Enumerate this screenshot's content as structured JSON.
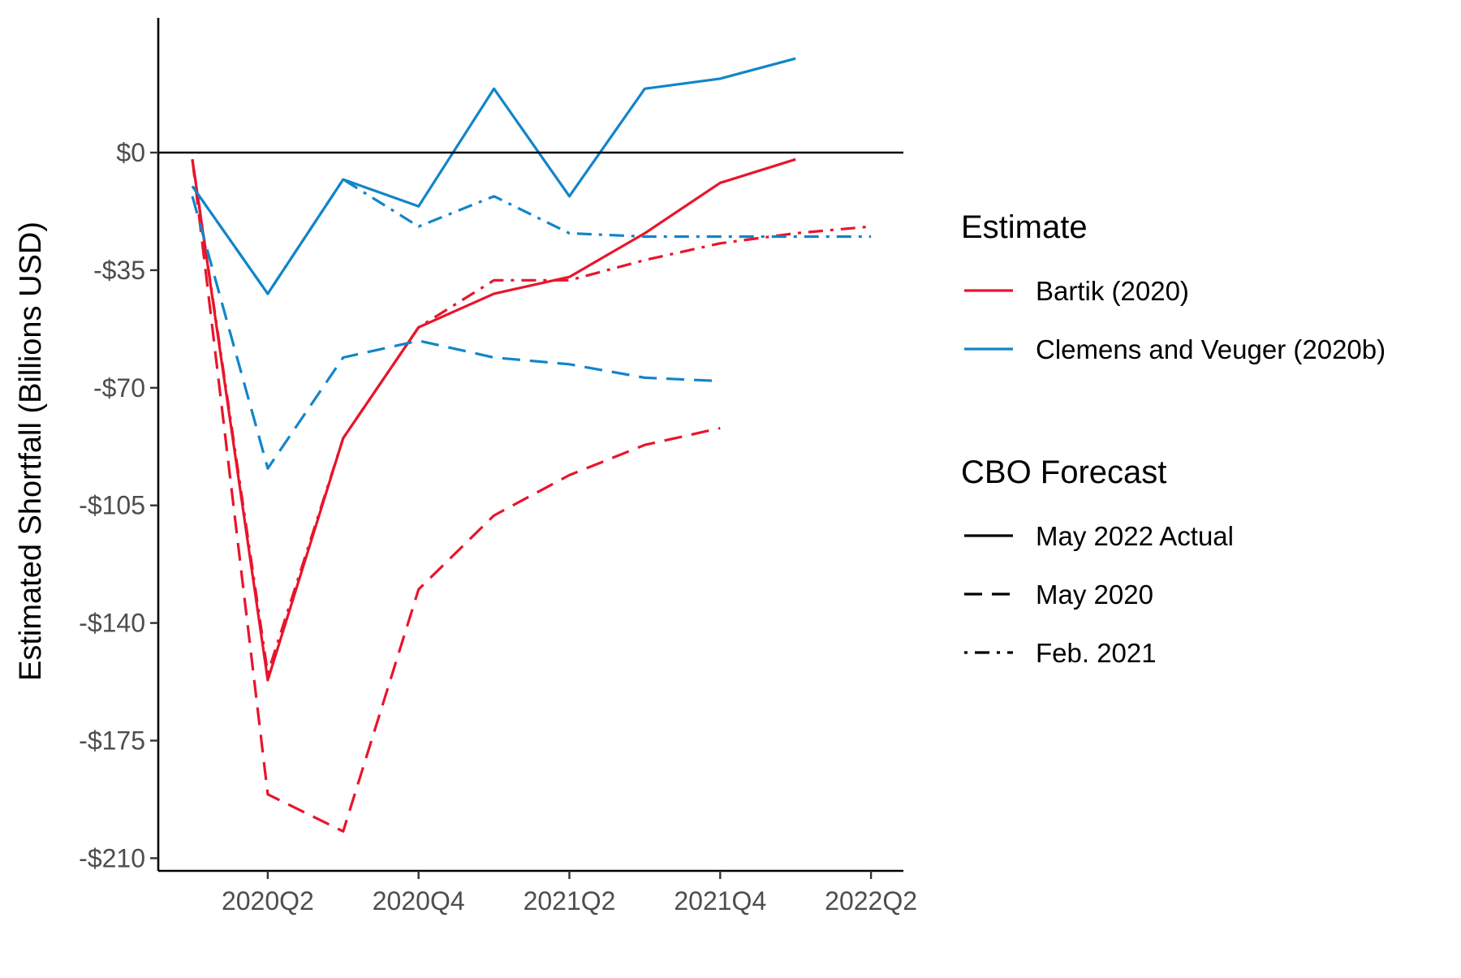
{
  "chart_data": {
    "type": "line",
    "title": "",
    "xlabel": "",
    "ylabel": "Estimated Shortfall (Billions USD)",
    "x": [
      "2020Q1",
      "2020Q2",
      "2020Q3",
      "2020Q4",
      "2021Q1",
      "2021Q2",
      "2021Q3",
      "2021Q4",
      "2022Q1",
      "2022Q2"
    ],
    "x_ticks": [
      "2020Q2",
      "2020Q4",
      "2021Q2",
      "2021Q4",
      "2022Q2"
    ],
    "y_ticks": [
      0,
      -35,
      -70,
      -105,
      -140,
      -175,
      -210
    ],
    "y_tick_labels": [
      "$0",
      "-$35",
      "-$70",
      "-$105",
      "-$140",
      "-$175",
      "-$210"
    ],
    "ylim": [
      -214,
      40
    ],
    "zero_line": true,
    "grid": false,
    "legend_position": "right",
    "legends": {
      "estimate": {
        "title": "Estimate",
        "items": [
          {
            "name": "Bartik (2020)",
            "color": "#E8152B"
          },
          {
            "name": "Clemens and Veuger (2020b)",
            "color": "#1185C9"
          }
        ]
      },
      "forecast": {
        "title": "CBO Forecast",
        "items": [
          {
            "name": "May 2022 Actual",
            "style": "solid"
          },
          {
            "name": "May 2020",
            "style": "dashed"
          },
          {
            "name": "Feb. 2021",
            "style": "dotdash"
          }
        ]
      }
    },
    "series": [
      {
        "name": "Bartik (2020)",
        "forecast": "May 2022 Actual",
        "color": "#E8152B",
        "style": "solid",
        "values": [
          -2,
          -157,
          -85,
          -52,
          -42,
          -37,
          -24,
          -9,
          -2,
          null
        ]
      },
      {
        "name": "Bartik (2020)",
        "forecast": "May 2020",
        "color": "#E8152B",
        "style": "dashed",
        "values": [
          -2,
          -191,
          -202,
          -130,
          -108,
          -96,
          -87,
          -82,
          null,
          null
        ]
      },
      {
        "name": "Bartik (2020)",
        "forecast": "Feb. 2021",
        "color": "#E8152B",
        "style": "dotdash",
        "values": [
          -2,
          -155,
          -85,
          -52,
          -38,
          -38,
          -32,
          -27,
          -24,
          -22
        ]
      },
      {
        "name": "Clemens and Veuger (2020b)",
        "forecast": "May 2022 Actual",
        "color": "#1185C9",
        "style": "solid",
        "values": [
          -10,
          -42,
          -8,
          -16,
          19,
          -13,
          19,
          22,
          28,
          null
        ]
      },
      {
        "name": "Clemens and Veuger (2020b)",
        "forecast": "May 2020",
        "color": "#1185C9",
        "style": "dashed",
        "values": [
          -13,
          -94,
          -61,
          -56,
          -61,
          -63,
          -67,
          -68,
          null,
          null
        ]
      },
      {
        "name": "Clemens and Veuger (2020b)",
        "forecast": "Feb. 2021",
        "color": "#1185C9",
        "style": "dotdash",
        "values": [
          -10,
          -42,
          -8,
          -22,
          -13,
          -24,
          -25,
          -25,
          -25,
          -25
        ]
      }
    ]
  }
}
